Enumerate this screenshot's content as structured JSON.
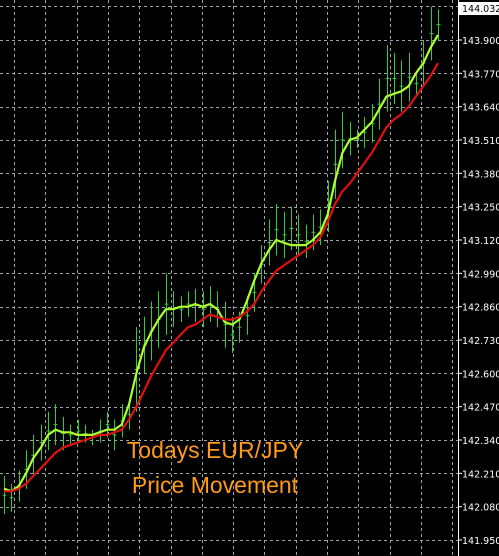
{
  "chart": {
    "caption_line1": "Todays EUR/JPY",
    "caption_line2": "Price Movement",
    "background_color": "#000000",
    "grid_color": "#9aa6a6",
    "candle_color": "#33cc33",
    "fast_ma_color": "#adff2f",
    "slow_ma_color": "#e01010",
    "axis_text_color": "#ffffff",
    "current_price_label_bg": "#ffffff"
  },
  "chart_data": {
    "type": "line",
    "title": "",
    "instrument": "EUR/JPY",
    "grid": true,
    "y_axis_side": "right",
    "ylim": [
      141.92,
      144.05
    ],
    "y_ticks": [
      "144.032",
      "143.900",
      "143.770",
      "143.640",
      "143.510",
      "143.380",
      "143.250",
      "143.120",
      "142.990",
      "142.860",
      "142.730",
      "142.600",
      "142.470",
      "142.340",
      "142.210",
      "142.080",
      "141.950"
    ],
    "current_price": "144.032",
    "candles": [
      {
        "high": 142.2,
        "low": 142.05
      },
      {
        "high": 142.17,
        "low": 142.06
      },
      {
        "high": 142.22,
        "low": 142.1
      },
      {
        "high": 142.3,
        "low": 142.15
      },
      {
        "high": 142.36,
        "low": 142.2
      },
      {
        "high": 142.4,
        "low": 142.26
      },
      {
        "high": 142.45,
        "low": 142.3
      },
      {
        "high": 142.48,
        "low": 142.32
      },
      {
        "high": 142.43,
        "low": 142.3
      },
      {
        "high": 142.4,
        "low": 142.32
      },
      {
        "high": 142.42,
        "low": 142.33
      },
      {
        "high": 142.4,
        "low": 142.33
      },
      {
        "high": 142.38,
        "low": 142.32
      },
      {
        "high": 142.42,
        "low": 142.33
      },
      {
        "high": 142.45,
        "low": 142.35
      },
      {
        "high": 142.42,
        "low": 142.3
      },
      {
        "high": 142.48,
        "low": 142.35
      },
      {
        "high": 142.5,
        "low": 142.38
      },
      {
        "high": 142.78,
        "low": 142.45
      },
      {
        "high": 142.82,
        "low": 142.6
      },
      {
        "high": 142.88,
        "low": 142.65
      },
      {
        "high": 142.92,
        "low": 142.7
      },
      {
        "high": 142.99,
        "low": 142.75
      },
      {
        "high": 142.92,
        "low": 142.78
      },
      {
        "high": 142.9,
        "low": 142.8
      },
      {
        "high": 142.92,
        "low": 142.82
      },
      {
        "high": 142.93,
        "low": 142.8
      },
      {
        "high": 142.92,
        "low": 142.78
      },
      {
        "high": 142.94,
        "low": 142.8
      },
      {
        "high": 142.92,
        "low": 142.78
      },
      {
        "high": 142.88,
        "low": 142.7
      },
      {
        "high": 142.82,
        "low": 142.68
      },
      {
        "high": 142.84,
        "low": 142.72
      },
      {
        "high": 142.9,
        "low": 142.75
      },
      {
        "high": 142.99,
        "low": 142.84
      },
      {
        "high": 143.1,
        "low": 142.95
      },
      {
        "high": 143.2,
        "low": 143.02
      },
      {
        "high": 143.26,
        "low": 143.06
      },
      {
        "high": 143.23,
        "low": 143.05
      },
      {
        "high": 143.25,
        "low": 143.08
      },
      {
        "high": 143.22,
        "low": 143.06
      },
      {
        "high": 143.18,
        "low": 143.05
      },
      {
        "high": 143.22,
        "low": 143.08
      },
      {
        "high": 143.24,
        "low": 143.1
      },
      {
        "high": 143.35,
        "low": 143.15
      },
      {
        "high": 143.55,
        "low": 143.28
      },
      {
        "high": 143.62,
        "low": 143.4
      },
      {
        "high": 143.58,
        "low": 143.45
      },
      {
        "high": 143.55,
        "low": 143.48
      },
      {
        "high": 143.6,
        "low": 143.48
      },
      {
        "high": 143.65,
        "low": 143.5
      },
      {
        "high": 143.75,
        "low": 143.55
      },
      {
        "high": 143.88,
        "low": 143.62
      },
      {
        "high": 143.85,
        "low": 143.65
      },
      {
        "high": 143.82,
        "low": 143.62
      },
      {
        "high": 143.85,
        "low": 143.66
      },
      {
        "high": 143.78,
        "low": 143.68
      },
      {
        "high": 143.9,
        "low": 143.72
      },
      {
        "high": 144.03,
        "low": 143.82
      },
      {
        "high": 144.02,
        "low": 143.9
      }
    ],
    "series": [
      {
        "color": "#adff2f",
        "values": [
          142.15,
          142.14,
          142.16,
          142.21,
          142.27,
          142.31,
          142.36,
          142.38,
          142.37,
          142.37,
          142.36,
          142.36,
          142.36,
          142.37,
          142.38,
          142.38,
          142.4,
          142.48,
          142.6,
          142.7,
          142.76,
          142.81,
          142.85,
          142.85,
          142.86,
          142.86,
          142.87,
          142.86,
          142.87,
          142.85,
          142.8,
          142.79,
          142.81,
          142.88,
          142.96,
          143.03,
          143.08,
          143.12,
          143.11,
          143.1,
          143.1,
          143.1,
          143.12,
          143.15,
          143.22,
          143.35,
          143.46,
          143.51,
          143.52,
          143.55,
          143.58,
          143.63,
          143.68,
          143.69,
          143.7,
          143.72,
          143.77,
          143.81,
          143.87,
          143.92
        ]
      },
      {
        "color": "#e01010",
        "values": [
          142.14,
          142.14,
          142.15,
          142.17,
          142.2,
          142.23,
          142.26,
          142.29,
          142.31,
          142.32,
          142.33,
          142.34,
          142.35,
          142.36,
          142.36,
          142.37,
          142.38,
          142.42,
          142.47,
          142.53,
          142.59,
          142.64,
          142.69,
          142.72,
          142.75,
          142.78,
          142.79,
          142.81,
          142.83,
          142.82,
          142.81,
          142.81,
          142.82,
          142.84,
          142.87,
          142.92,
          142.96,
          143.0,
          143.02,
          143.04,
          143.06,
          143.08,
          143.1,
          143.13,
          143.19,
          143.26,
          143.31,
          143.34,
          143.38,
          143.42,
          143.46,
          143.51,
          143.56,
          143.59,
          143.61,
          143.64,
          143.68,
          143.72,
          143.76,
          143.81
        ]
      }
    ]
  }
}
